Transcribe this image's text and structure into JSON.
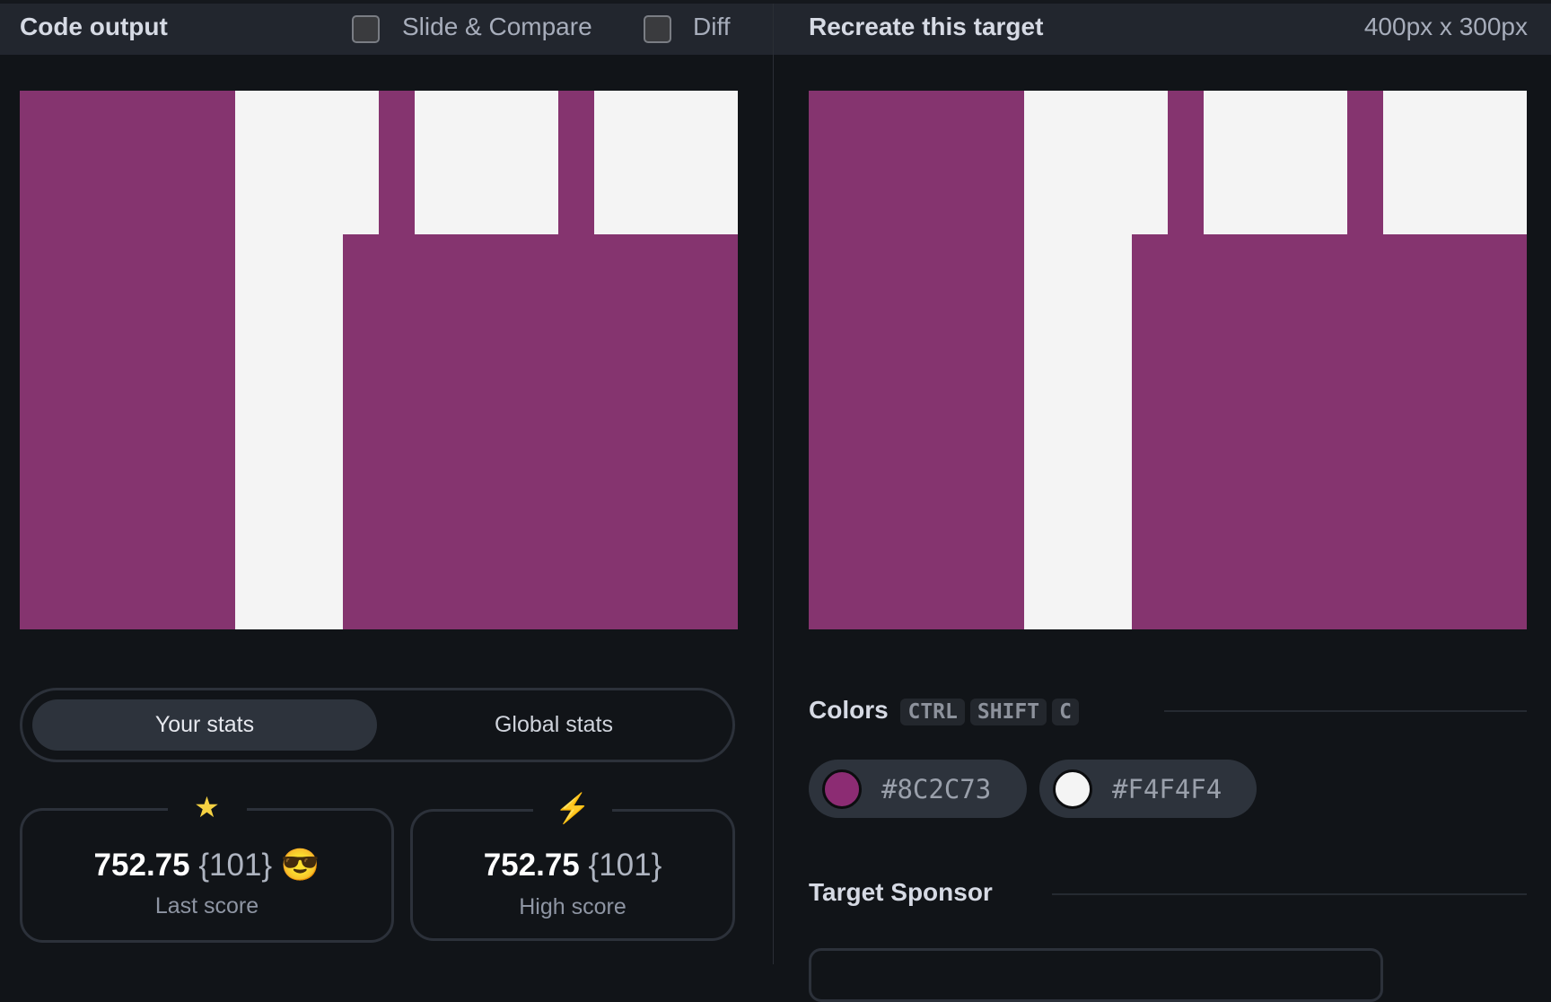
{
  "header_left": {
    "title": "Code output",
    "slide_compare_label": "Slide & Compare",
    "diff_label": "Diff"
  },
  "header_right": {
    "title": "Recreate this target",
    "dimensions": "400px x 300px"
  },
  "stats": {
    "tabs": [
      {
        "label": "Your stats",
        "active": true
      },
      {
        "label": "Global stats",
        "active": false
      }
    ],
    "last": {
      "icon": "star-icon",
      "value": "752.75",
      "count": "{101}",
      "emoji": "😎",
      "label": "Last score"
    },
    "high": {
      "icon": "lightning-icon",
      "value": "752.75",
      "count": "{101}",
      "label": "High score"
    }
  },
  "colors": {
    "title": "Colors",
    "shortcut": [
      "CTRL",
      "SHIFT",
      "C"
    ],
    "swatches": [
      {
        "hex": "#8C2C73",
        "label": "#8C2C73"
      },
      {
        "hex": "#F4F4F4",
        "label": "#F4F4F4"
      }
    ]
  },
  "sponsor": {
    "title": "Target Sponsor"
  },
  "palette": {
    "purple": "#85346F",
    "white": "#F4F4F4"
  }
}
